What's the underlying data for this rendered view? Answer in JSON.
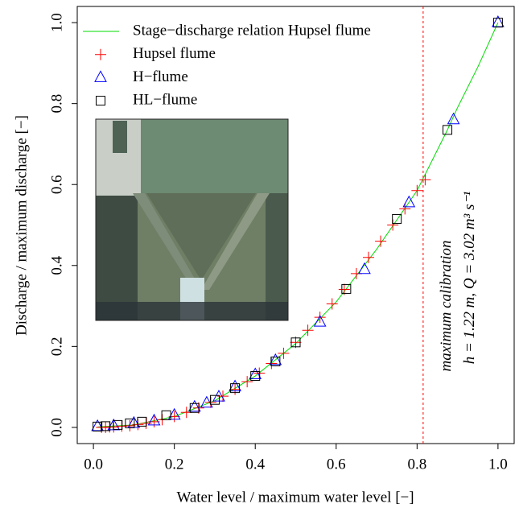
{
  "chart_data": {
    "type": "scatter",
    "xlabel": "Water level / maximum water level [−]",
    "ylabel": "Discharge / maximum discharge [−]",
    "xlim": [
      -0.04,
      1.04
    ],
    "ylim": [
      -0.04,
      1.04
    ],
    "xticks": [
      {
        "value": 0,
        "label": "0.0"
      },
      0.2,
      0.4,
      0.6,
      0.8,
      {
        "value": 1,
        "label": "1.0"
      }
    ],
    "yticks": [
      {
        "value": 0,
        "label": "0.0"
      },
      0.2,
      0.4,
      0.6,
      0.8,
      {
        "value": 1,
        "label": "1.0"
      }
    ],
    "series": [
      {
        "name": "Stage−discharge relation Hupsel flume",
        "marker": "line",
        "color": "#00dd00",
        "x": [
          0.01,
          0.1,
          0.2,
          0.3,
          0.4,
          0.5,
          0.6,
          0.7,
          0.8,
          0.875,
          0.9,
          0.95,
          1.0
        ],
        "values": [
          0.001,
          0.006,
          0.027,
          0.066,
          0.127,
          0.207,
          0.31,
          0.44,
          0.585,
          0.735,
          0.79,
          0.89,
          1.0
        ]
      },
      {
        "name": "Hupsel flume",
        "marker": "plus",
        "color": "#ff0000",
        "x": [
          0.02,
          0.03,
          0.04,
          0.05,
          0.07,
          0.09,
          0.11,
          0.13,
          0.15,
          0.17,
          0.2,
          0.23,
          0.26,
          0.29,
          0.32,
          0.35,
          0.38,
          0.41,
          0.44,
          0.47,
          0.5,
          0.53,
          0.56,
          0.59,
          0.62,
          0.65,
          0.68,
          0.71,
          0.74,
          0.77,
          0.8,
          0.82
        ],
        "values": [
          0.0,
          0.0,
          0.001,
          0.001,
          0.003,
          0.004,
          0.007,
          0.01,
          0.014,
          0.019,
          0.027,
          0.037,
          0.048,
          0.062,
          0.077,
          0.094,
          0.113,
          0.134,
          0.158,
          0.183,
          0.21,
          0.24,
          0.272,
          0.305,
          0.341,
          0.38,
          0.42,
          0.46,
          0.5,
          0.54,
          0.585,
          0.612
        ]
      },
      {
        "name": "H−flume",
        "marker": "triangle",
        "color": "#0000ff",
        "x": [
          0.01,
          0.05,
          0.1,
          0.15,
          0.2,
          0.25,
          0.28,
          0.31,
          0.35,
          0.4,
          0.45,
          0.56,
          0.67,
          0.78,
          0.89,
          1.0
        ],
        "values": [
          0.002,
          0.004,
          0.01,
          0.016,
          0.03,
          0.05,
          0.06,
          0.075,
          0.1,
          0.13,
          0.165,
          0.26,
          0.39,
          0.555,
          0.76,
          1.0
        ]
      },
      {
        "name": "HL−flume",
        "marker": "square",
        "color": "#000000",
        "x": [
          0.01,
          0.03,
          0.06,
          0.09,
          0.12,
          0.18,
          0.25,
          0.3,
          0.35,
          0.4,
          0.45,
          0.5,
          0.625,
          0.75,
          0.875,
          1.0
        ],
        "values": [
          0.002,
          0.003,
          0.006,
          0.01,
          0.014,
          0.03,
          0.048,
          0.068,
          0.097,
          0.127,
          0.163,
          0.21,
          0.342,
          0.515,
          0.735,
          1.0
        ]
      }
    ],
    "vline": {
      "x": 0.815,
      "color": "#ff0000"
    },
    "annotations": [
      "maximum calibration",
      "h = 1.22 m, Q = 3.02 m³ s⁻¹"
    ],
    "legend": "top-left"
  }
}
